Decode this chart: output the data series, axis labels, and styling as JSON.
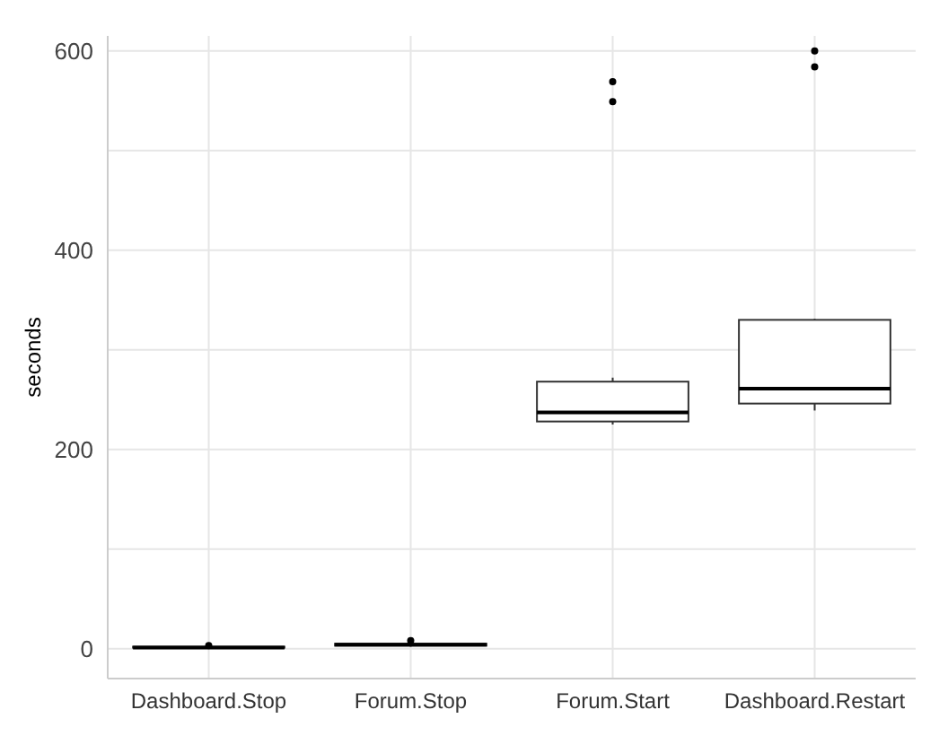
{
  "chart_data": {
    "type": "box",
    "ylabel": "seconds",
    "categories": [
      "Dashboard.Stop",
      "Forum.Stop",
      "Forum.Start",
      "Dashboard.Restart"
    ],
    "boxes": [
      {
        "low": 0,
        "q1": 1,
        "median": 1,
        "q3": 2,
        "high": 2,
        "outliers": [
          3
        ]
      },
      {
        "low": 2,
        "q1": 3,
        "median": 4,
        "q3": 5,
        "high": 5,
        "outliers": [
          8
        ]
      },
      {
        "low": 225,
        "q1": 228,
        "median": 237,
        "q3": 268,
        "high": 272,
        "outliers": [
          549,
          569
        ]
      },
      {
        "low": 239,
        "q1": 246,
        "median": 261,
        "q3": 330,
        "high": 331,
        "outliers": [
          584,
          600
        ]
      }
    ],
    "color": "#333333",
    "ylim": [
      -30,
      615
    ],
    "yticks": [
      0,
      {
        "value": 100,
        "label": null
      },
      200,
      {
        "value": 300,
        "label": null
      },
      400,
      {
        "value": 500,
        "label": null
      },
      600
    ],
    "grid": true
  }
}
